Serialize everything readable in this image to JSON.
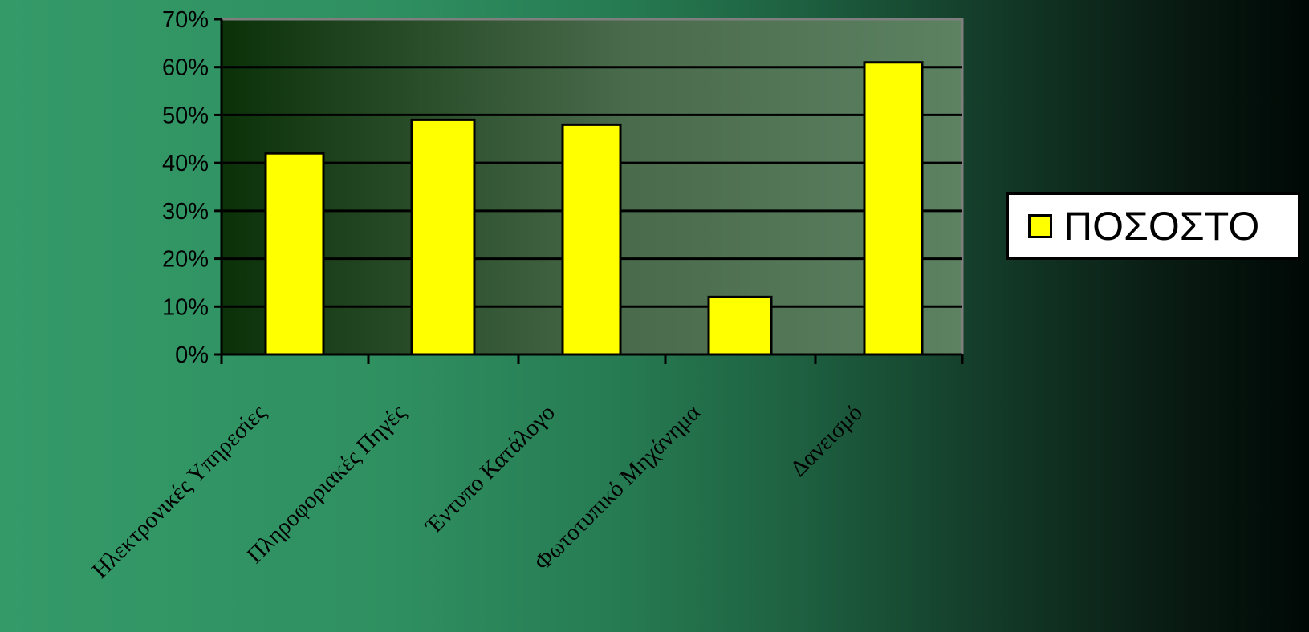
{
  "colors": {
    "bar_fill": "#ffff00",
    "bar_stroke": "#000000",
    "plot_gradient_start": "#0b3109",
    "plot_gradient_mid": "#4a6b4c",
    "plot_gradient_end": "#5c8262",
    "gridline": "#000000",
    "plot_border": "#7f7f7f"
  },
  "chart_data": {
    "type": "bar",
    "title": "",
    "xlabel": "",
    "ylabel": "",
    "categories": [
      "Ηλεκτρονικές Υπηρεσίες",
      "Πληροφοριακές Πηγές",
      "Έντυπο Κατάλογο",
      "Φωτοτυπικό Μηχάνημα",
      "Δανεισμό"
    ],
    "series": [
      {
        "name": "ΠΟΣΟΣΤΟ",
        "values": [
          0.42,
          0.49,
          0.48,
          0.12,
          0.61
        ]
      }
    ],
    "ylim": [
      0,
      0.7
    ],
    "yticks": [
      0,
      0.1,
      0.2,
      0.3,
      0.4,
      0.5,
      0.6,
      0.7
    ],
    "ytick_labels": [
      "0%",
      "10%",
      "20%",
      "30%",
      "40%",
      "50%",
      "60%",
      "70%"
    ],
    "grid": true,
    "legend_position": "right"
  }
}
